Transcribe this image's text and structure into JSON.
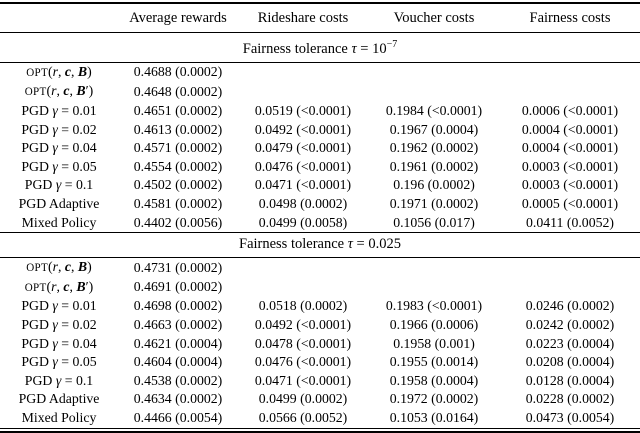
{
  "table": {
    "columns": [
      "Average rewards",
      "Rideshare costs",
      "Voucher costs",
      "Fairness costs"
    ],
    "sections": [
      {
        "title": "Fairness tolerance τ = 10",
        "title_sup": "−7",
        "rows": [
          {
            "label": "OPT(r, c, B)",
            "cells": [
              "0.4688 (0.0002)",
              "",
              "",
              ""
            ]
          },
          {
            "label": "OPT(r, c, B′)",
            "cells": [
              "0.4648 (0.0002)",
              "",
              "",
              ""
            ]
          },
          {
            "label": "PGD γ = 0.01",
            "cells": [
              "0.4651 (0.0002)",
              "0.0519 (<0.0001)",
              "0.1984 (<0.0001)",
              "0.0006 (<0.0001)"
            ]
          },
          {
            "label": "PGD γ = 0.02",
            "cells": [
              "0.4613 (0.0002)",
              "0.0492 (<0.0001)",
              "0.1967 (0.0004)",
              "0.0004 (<0.0001)"
            ]
          },
          {
            "label": "PGD γ = 0.04",
            "cells": [
              "0.4571 (0.0002)",
              "0.0479 (<0.0001)",
              "0.1962 (0.0002)",
              "0.0004 (<0.0001)"
            ]
          },
          {
            "label": "PGD γ = 0.05",
            "cells": [
              "0.4554 (0.0002)",
              "0.0476 (<0.0001)",
              "0.1961 (0.0002)",
              "0.0003 (<0.0001)"
            ]
          },
          {
            "label": "PGD γ = 0.1",
            "cells": [
              "0.4502 (0.0002)",
              "0.0471 (<0.0001)",
              "0.196 (0.0002)",
              "0.0003 (<0.0001)"
            ]
          },
          {
            "label": "PGD Adaptive",
            "cells": [
              "0.4581 (0.0002)",
              "0.0498 (0.0002)",
              "0.1971 (0.0002)",
              "0.0005 (<0.0001)"
            ]
          },
          {
            "label": "Mixed Policy",
            "cells": [
              "0.4402 (0.0056)",
              "0.0499 (0.0058)",
              "0.1056 (0.017)",
              "0.0411 (0.0052)"
            ]
          }
        ]
      },
      {
        "title": "Fairness tolerance τ = 0.025",
        "title_sup": "",
        "rows": [
          {
            "label": "OPT(r, c, B)",
            "cells": [
              "0.4731 (0.0002)",
              "",
              "",
              ""
            ]
          },
          {
            "label": "OPT(r, c, B′)",
            "cells": [
              "0.4691 (0.0002)",
              "",
              "",
              ""
            ]
          },
          {
            "label": "PGD γ = 0.01",
            "cells": [
              "0.4698 (0.0002)",
              "0.0518 (0.0002)",
              "0.1983 (<0.0001)",
              "0.0246 (0.0002)"
            ]
          },
          {
            "label": "PGD γ = 0.02",
            "cells": [
              "0.4663 (0.0002)",
              "0.0492 (<0.0001)",
              "0.1966 (0.0006)",
              "0.0242 (0.0002)"
            ]
          },
          {
            "label": "PGD γ = 0.04",
            "cells": [
              "0.4621 (0.0004)",
              "0.0478 (<0.0001)",
              "0.1958 (0.001)",
              "0.0223 (0.0004)"
            ]
          },
          {
            "label": "PGD γ = 0.05",
            "cells": [
              "0.4604 (0.0004)",
              "0.0476 (<0.0001)",
              "0.1955 (0.0014)",
              "0.0208 (0.0004)"
            ]
          },
          {
            "label": "PGD γ = 0.1",
            "cells": [
              "0.4538 (0.0002)",
              "0.0471 (<0.0001)",
              "0.1958 (0.0004)",
              "0.0128 (0.0004)"
            ]
          },
          {
            "label": "PGD Adaptive",
            "cells": [
              "0.4634 (0.0002)",
              "0.0499 (0.0002)",
              "0.1972 (0.0002)",
              "0.0228 (0.0002)"
            ]
          },
          {
            "label": "Mixed Policy",
            "cells": [
              "0.4466 (0.0054)",
              "0.0566 (0.0052)",
              "0.1053 (0.0164)",
              "0.0473 (0.0054)"
            ]
          }
        ]
      }
    ]
  }
}
